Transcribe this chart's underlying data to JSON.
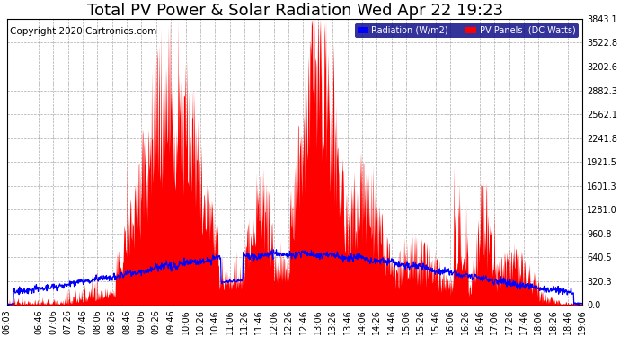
{
  "title": "Total PV Power & Solar Radiation Wed Apr 22 19:23",
  "copyright": "Copyright 2020 Cartronics.com",
  "background_color": "#ffffff",
  "plot_bg_color": "#ffffff",
  "legend_labels": [
    "Radiation (W/m2)",
    "PV Panels  (DC Watts)"
  ],
  "legend_colors": [
    "#0000ff",
    "#ff0000"
  ],
  "pv_color": "#ff0000",
  "radiation_color": "#0000ff",
  "ylim": [
    0,
    3843.1
  ],
  "ytick_labels": [
    "0.0",
    "320.3",
    "640.5",
    "960.8",
    "1281.0",
    "1601.3",
    "1921.5",
    "2241.8",
    "2562.1",
    "2882.3",
    "3202.6",
    "3522.8",
    "3843.1"
  ],
  "ytick_values": [
    0.0,
    320.3,
    640.5,
    960.8,
    1281.0,
    1601.3,
    1921.5,
    2241.8,
    2562.1,
    2882.3,
    3202.6,
    3522.8,
    3843.1
  ],
  "xtick_labels": [
    "06:03",
    "06:46",
    "07:06",
    "07:26",
    "07:46",
    "08:06",
    "08:26",
    "08:46",
    "09:06",
    "09:26",
    "09:46",
    "10:06",
    "10:26",
    "10:46",
    "11:06",
    "11:26",
    "11:46",
    "12:06",
    "12:26",
    "12:46",
    "13:06",
    "13:26",
    "13:46",
    "14:06",
    "14:26",
    "14:46",
    "15:06",
    "15:26",
    "15:46",
    "16:06",
    "16:26",
    "16:46",
    "17:06",
    "17:26",
    "17:46",
    "18:06",
    "18:26",
    "18:46",
    "19:06"
  ],
  "grid_color": "#aaaaaa",
  "grid_linestyle": "--",
  "title_fontsize": 13,
  "axis_fontsize": 7,
  "copyright_fontsize": 7.5
}
